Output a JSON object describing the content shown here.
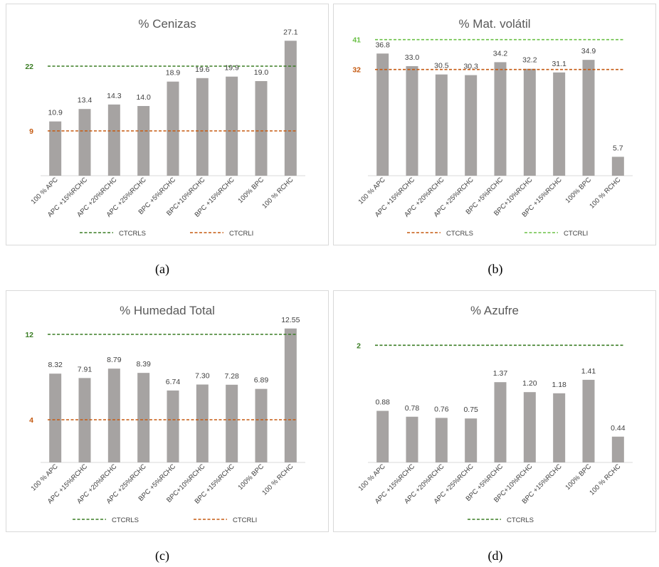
{
  "categories": [
    "100 % APC",
    "APC +15%RCHC",
    "APC +20%RCHC",
    "APC +25%RCHC",
    "BPC +5%RCHC",
    "BPC+10%RCHC",
    "BPC +15%RCHC",
    "100% BPC",
    "100 % RCHC"
  ],
  "colors": {
    "bar": "#a6a3a2",
    "dark_green": "#3a7d24",
    "orange": "#c55a11",
    "light_green": "#6ac045"
  },
  "chart_data": [
    {
      "type": "bar",
      "title": "% Cenizas",
      "caption": "(a)",
      "ylim": [
        0,
        30
      ],
      "values": [
        10.9,
        13.4,
        14.3,
        14.0,
        18.9,
        19.6,
        19.9,
        19.0,
        27.1
      ],
      "value_labels": [
        "10.9",
        "13.4",
        "14.3",
        "14.0",
        "18.9",
        "19.6",
        "19.9",
        "19.0",
        "27.1"
      ],
      "reference_lines": [
        {
          "name": "CTCRLS",
          "value": 22,
          "label": "22",
          "color": "dark_green"
        },
        {
          "name": "CTCRLI",
          "value": 9,
          "label": "9",
          "color": "orange"
        }
      ]
    },
    {
      "type": "bar",
      "title": "% Mat. volátil",
      "caption": "(b)",
      "ylim": [
        0,
        45
      ],
      "values": [
        36.8,
        33.0,
        30.5,
        30.3,
        34.2,
        32.2,
        31.1,
        34.9,
        5.7
      ],
      "value_labels": [
        "36.8",
        "33.0",
        "30.5",
        "30.3",
        "34.2",
        "32.2",
        "31.1",
        "34.9",
        "5.7"
      ],
      "reference_lines": [
        {
          "name": "CTCRLS",
          "value": 32,
          "label": "32",
          "color": "orange"
        },
        {
          "name": "CTCRLI",
          "value": 41,
          "label": "41",
          "color": "light_green"
        }
      ]
    },
    {
      "type": "bar",
      "title": "% Humedad Total",
      "caption": "(c)",
      "ylim": [
        0,
        14
      ],
      "values": [
        8.32,
        7.91,
        8.79,
        8.39,
        6.74,
        7.3,
        7.28,
        6.89,
        12.55
      ],
      "value_labels": [
        "8.32",
        "7.91",
        "8.79",
        "8.39",
        "6.74",
        "7.30",
        "7.28",
        "6.89",
        "12.55"
      ],
      "reference_lines": [
        {
          "name": "CTCRLS",
          "value": 12,
          "label": "12",
          "color": "dark_green"
        },
        {
          "name": "CTCRLI",
          "value": 4,
          "label": "4",
          "color": "orange"
        }
      ]
    },
    {
      "type": "bar",
      "title": "% Azufre",
      "caption": "(d)",
      "ylim": [
        0,
        2.55
      ],
      "values": [
        0.88,
        0.78,
        0.76,
        0.75,
        1.37,
        1.2,
        1.18,
        1.41,
        0.44
      ],
      "value_labels": [
        "0.88",
        "0.78",
        "0.76",
        "0.75",
        "1.37",
        "1.20",
        "1.18",
        "1.41",
        "0.44"
      ],
      "reference_lines": [
        {
          "name": "CTCRLS",
          "value": 2,
          "label": "2",
          "color": "dark_green"
        }
      ]
    }
  ]
}
